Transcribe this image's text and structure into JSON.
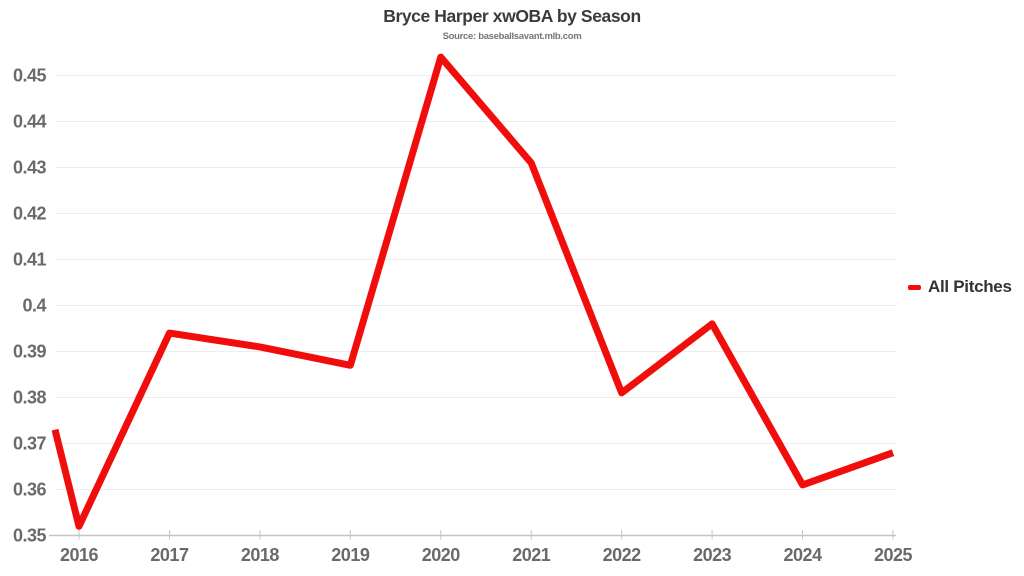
{
  "header": {
    "title": "Bryce Harper xwOBA by Season",
    "source": "Source: baseballsavant.mlb.com"
  },
  "legend": {
    "items": [
      {
        "label": "All Pitches",
        "color": "#f20d0d"
      }
    ]
  },
  "colors": {
    "line": "#f20d0d",
    "grid": "#ededed",
    "axis": "#c4c4c4",
    "tick_label": "#6a6a6a",
    "title_text": "#3b3b3b",
    "source_text": "#767676",
    "legend_text": "#333333",
    "background": "#ffffff"
  },
  "chart_data": {
    "type": "line",
    "title": "Bryce Harper xwOBA by Season",
    "subtitle": "Source: baseballsavant.mlb.com",
    "xlabel": "",
    "ylabel": "",
    "x": [
      2016,
      2017,
      2018,
      2019,
      2020,
      2021,
      2022,
      2023,
      2024,
      2025
    ],
    "series": [
      {
        "name": "All Pitches",
        "color": "#f20d0d",
        "values": [
          0.352,
          0.394,
          0.391,
          0.387,
          0.454,
          0.431,
          0.381,
          0.396,
          0.361,
          0.368
        ],
        "left_edge_entry_value": 0.373
      }
    ],
    "ylim": [
      0.35,
      0.455
    ],
    "yticks": [
      0.35,
      0.36,
      0.37,
      0.38,
      0.39,
      0.4,
      0.41,
      0.42,
      0.43,
      0.44,
      0.45
    ],
    "ytick_labels": [
      "0.35",
      "0.36",
      "0.37",
      "0.38",
      "0.39",
      "0.4",
      "0.41",
      "0.42",
      "0.43",
      "0.44",
      "0.45"
    ],
    "grid": "horizontal",
    "legend_position": "right"
  }
}
